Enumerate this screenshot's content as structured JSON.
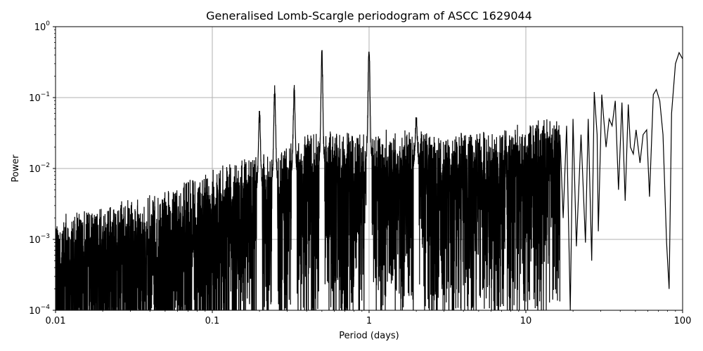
{
  "chart_data": {
    "type": "line",
    "title": "Generalised Lomb-Scargle periodogram of ASCC 1629044",
    "xlabel": "Period (days)",
    "ylabel": "Power",
    "xscale": "log",
    "yscale": "log",
    "xlim": [
      0.01,
      100
    ],
    "ylim": [
      0.0001,
      1
    ],
    "grid": true,
    "line_color": "#000000",
    "grid_color": "#b0b0b0",
    "x_ticks": [
      {
        "value": 0.01,
        "label": "0.01"
      },
      {
        "value": 0.1,
        "label": "0.1"
      },
      {
        "value": 1,
        "label": "1"
      },
      {
        "value": 10,
        "label": "10"
      },
      {
        "value": 100,
        "label": "100"
      }
    ],
    "y_ticks": [
      {
        "value": 0.0001,
        "base": "10",
        "exp": "−4"
      },
      {
        "value": 0.001,
        "base": "10",
        "exp": "−3"
      },
      {
        "value": 0.01,
        "base": "10",
        "exp": "−2"
      },
      {
        "value": 0.1,
        "base": "10",
        "exp": "−1"
      },
      {
        "value": 1,
        "base": "10",
        "exp": "0"
      }
    ],
    "series": [
      {
        "envelope_period": [
          0.01,
          0.02,
          0.05,
          0.1,
          0.2,
          0.3,
          0.5,
          0.7,
          1.0,
          1.5,
          2,
          3,
          5,
          7,
          10,
          15,
          20
        ],
        "envelope_power": [
          0.0008,
          0.0011,
          0.0017,
          0.0035,
          0.006,
          0.009,
          0.012,
          0.012,
          0.014,
          0.013,
          0.012,
          0.011,
          0.012,
          0.014,
          0.016,
          0.02,
          0.03
        ],
        "peaks": [
          {
            "period": 0.333,
            "power": 0.13
          },
          {
            "period": 0.5,
            "power": 0.44
          },
          {
            "period": 0.25,
            "power": 0.13
          },
          {
            "period": 1.0,
            "power": 0.49
          },
          {
            "period": 0.998,
            "power": 0.45
          },
          {
            "period": 0.2,
            "power": 0.06
          },
          {
            "period": 2.0,
            "power": 0.05
          }
        ],
        "long_period_x": [
          16.5,
          17.3,
          18.2,
          19.2,
          20.0,
          21.0,
          22.5,
          24.0,
          25.0,
          26.3,
          27.3,
          28.5,
          29.0,
          30.5,
          32.5,
          34.0,
          35.5,
          37.2,
          39.0,
          41.0,
          43.0,
          45.0,
          46.5,
          48.5,
          50.5,
          53.5,
          56.0,
          59.0,
          61.5,
          65.0,
          68.0,
          71.5,
          75.0,
          79.0,
          82.0,
          85.0,
          90.0,
          95.0,
          100.0
        ],
        "long_period_y": [
          0.03,
          0.002,
          0.04,
          0.0001,
          0.05,
          0.0008,
          0.03,
          0.0009,
          0.05,
          0.0005,
          0.12,
          0.03,
          0.0013,
          0.11,
          0.02,
          0.05,
          0.04,
          0.09,
          0.005,
          0.085,
          0.0035,
          0.08,
          0.02,
          0.016,
          0.035,
          0.012,
          0.03,
          0.035,
          0.004,
          0.11,
          0.13,
          0.09,
          0.03,
          0.0009,
          0.0002,
          0.06,
          0.3,
          0.43,
          0.35
        ]
      }
    ]
  }
}
